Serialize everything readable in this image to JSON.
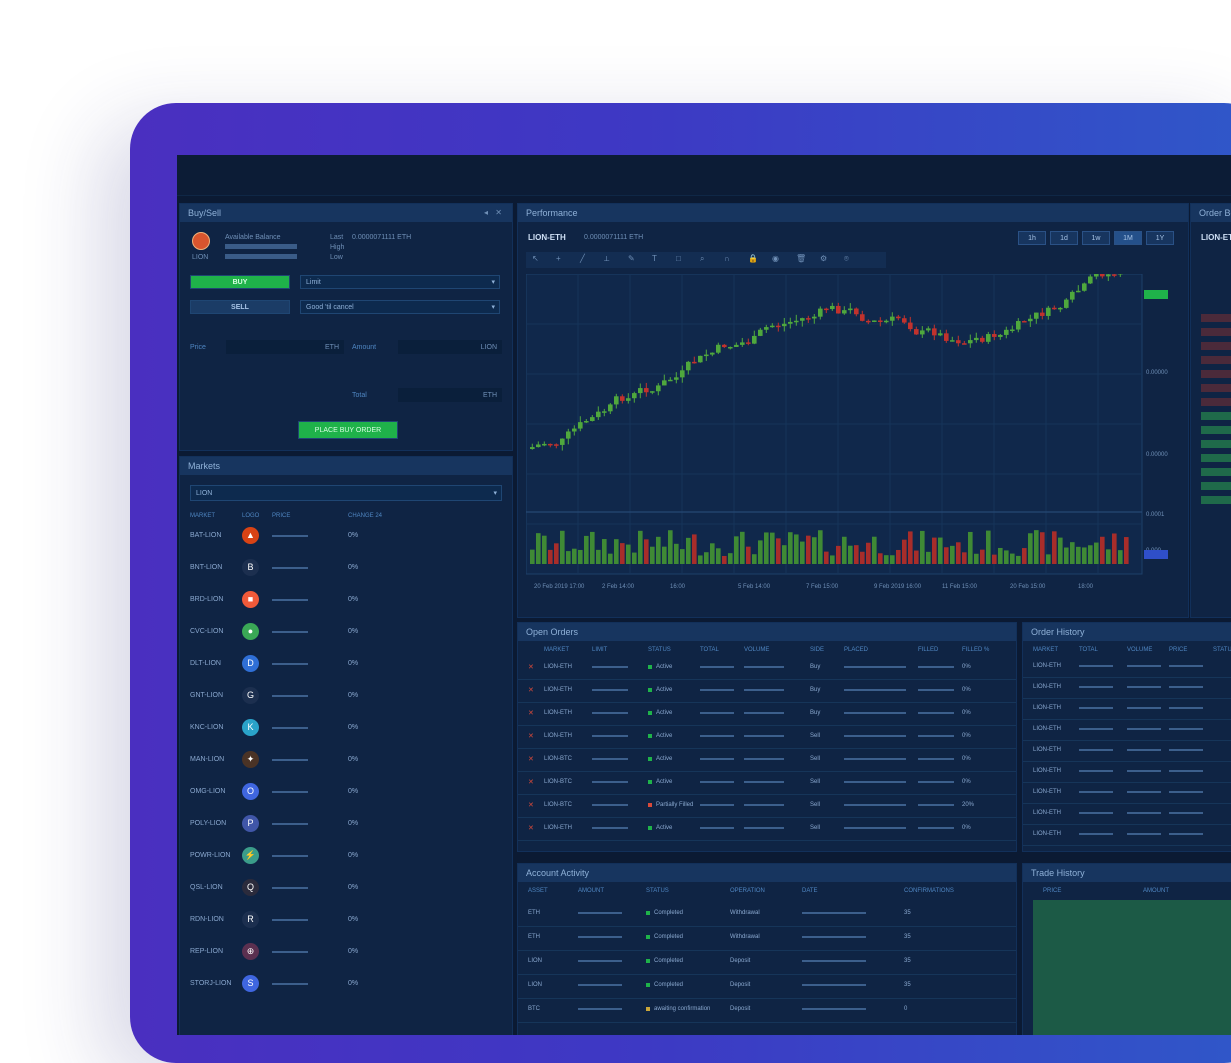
{
  "colors": {
    "accent": "#1fb24a",
    "frame": "#3d39c4",
    "panel": "#0f2444",
    "up": "#4fa83d",
    "down": "#c1322d"
  },
  "buysell": {
    "title": "Buy/Sell",
    "asset": "LION",
    "balance_label": "Available Balance",
    "last_label": "Last",
    "last_value": "0.0000071111 ETH",
    "high_label": "High",
    "low_label": "Low",
    "buy_label": "BUY",
    "sell_label": "SELL",
    "order_type": "Limit",
    "time_in_force": "Good 'til cancel",
    "price_label": "Price",
    "price_unit": "ETH",
    "amount_label": "Amount",
    "amount_unit": "LION",
    "total_label": "Total",
    "total_unit": "ETH",
    "place_label": "PLACE BUY ORDER"
  },
  "markets": {
    "title": "Markets",
    "search_value": "LION",
    "headers": [
      "MARKET",
      "LOGO",
      "PRICE",
      "CHANGE 24"
    ],
    "rows": [
      {
        "market": "BAT-LION",
        "change": "0%",
        "color": "#d84315",
        "glyph": "▲"
      },
      {
        "market": "BNT-LION",
        "change": "0%",
        "color": "#1c2f4f",
        "glyph": "B"
      },
      {
        "market": "BRD-LION",
        "change": "0%",
        "color": "#f05a3a",
        "glyph": "■"
      },
      {
        "market": "CVC-LION",
        "change": "0%",
        "color": "#3aa856",
        "glyph": "●"
      },
      {
        "market": "DLT-LION",
        "change": "0%",
        "color": "#2f6fd6",
        "glyph": "D"
      },
      {
        "market": "GNT-LION",
        "change": "0%",
        "color": "#1c2f4f",
        "glyph": "G"
      },
      {
        "market": "KNC-LION",
        "change": "0%",
        "color": "#2aa3c9",
        "glyph": "K"
      },
      {
        "market": "MAN-LION",
        "change": "0%",
        "color": "#4a3326",
        "glyph": "✦"
      },
      {
        "market": "OMG-LION",
        "change": "0%",
        "color": "#3f66e0",
        "glyph": "O"
      },
      {
        "market": "POLY-LION",
        "change": "0%",
        "color": "#4056a8",
        "glyph": "P"
      },
      {
        "market": "POWR-LION",
        "change": "0%",
        "color": "#3b9d8a",
        "glyph": "⚡"
      },
      {
        "market": "QSL-LION",
        "change": "0%",
        "color": "#2b2b3c",
        "glyph": "Q"
      },
      {
        "market": "RDN-LION",
        "change": "0%",
        "color": "#1c2f4f",
        "glyph": "R"
      },
      {
        "market": "REP-LION",
        "change": "0%",
        "color": "#5b3050",
        "glyph": "⊕"
      },
      {
        "market": "STORJ-LION",
        "change": "0%",
        "color": "#3f66e0",
        "glyph": "S"
      }
    ]
  },
  "performance": {
    "title": "Performance",
    "pair": "LION-ETH",
    "price": "0.0000071111 ETH",
    "ranges": [
      "1h",
      "1d",
      "1w",
      "1M",
      "1Y"
    ],
    "toolbar_icons": [
      "cursor-icon",
      "crosshair-icon",
      "trend-line-icon",
      "ruler-icon",
      "brush-icon",
      "text-icon",
      "shape-icon",
      "zoom-icon",
      "magnet-icon",
      "lock-icon",
      "eye-icon",
      "trash-icon",
      "settings-icon",
      "camera-icon"
    ],
    "x_labels": [
      "20 Feb 2019 17:00",
      "2 Feb 14:00",
      "16:00",
      "5 Feb 14:00",
      "7 Feb 15:00",
      "9 Feb 2019 16:00",
      "11 Feb 15:00",
      "20 Feb 15:00",
      "18:00"
    ],
    "y_labels": [
      "0.00000",
      "0.00000",
      "0.00000",
      "0.0001",
      "0.000"
    ]
  },
  "order_book": {
    "title": "Order Book",
    "pair": "LION-ETH"
  },
  "open_orders": {
    "title": "Open Orders",
    "headers": [
      "MARKET",
      "LIMIT",
      "STATUS",
      "TOTAL",
      "VOLUME",
      "SIDE",
      "PLACED",
      "FILLED",
      "FILLED %"
    ],
    "rows": [
      {
        "market": "LION-ETH",
        "status": "Active",
        "side": "Buy",
        "filled": "0%"
      },
      {
        "market": "LION-ETH",
        "status": "Active",
        "side": "Buy",
        "filled": "0%"
      },
      {
        "market": "LION-ETH",
        "status": "Active",
        "side": "Buy",
        "filled": "0%"
      },
      {
        "market": "LION-ETH",
        "status": "Active",
        "side": "Sell",
        "filled": "0%"
      },
      {
        "market": "LION-BTC",
        "status": "Active",
        "side": "Sell",
        "filled": "0%"
      },
      {
        "market": "LION-BTC",
        "status": "Active",
        "side": "Sell",
        "filled": "0%"
      },
      {
        "market": "LION-BTC",
        "status": "Partially Filled",
        "side": "Sell",
        "filled": "20%"
      },
      {
        "market": "LION-ETH",
        "status": "Active",
        "side": "Sell",
        "filled": "0%"
      }
    ]
  },
  "order_history": {
    "title": "Order History",
    "headers": [
      "MARKET",
      "TOTAL",
      "VOLUME",
      "PRICE",
      "STATUS"
    ],
    "rows": [
      "LION-ETH",
      "LION-ETH",
      "LION-ETH",
      "LION-ETH",
      "LION-ETH",
      "LION-ETH",
      "LION-ETH",
      "LION-ETH",
      "LION-ETH"
    ]
  },
  "account_activity": {
    "title": "Account Activity",
    "headers": [
      "ASSET",
      "AMOUNT",
      "STATUS",
      "OPERATION",
      "DATE",
      "CONFIRMATIONS"
    ],
    "rows": [
      {
        "asset": "ETH",
        "status": "Completed",
        "operation": "Withdrawal",
        "conf": "35"
      },
      {
        "asset": "ETH",
        "status": "Completed",
        "operation": "Withdrawal",
        "conf": "35"
      },
      {
        "asset": "LION",
        "status": "Completed",
        "operation": "Deposit",
        "conf": "35"
      },
      {
        "asset": "LION",
        "status": "Completed",
        "operation": "Deposit",
        "conf": "35"
      },
      {
        "asset": "BTC",
        "status": "awaiting confirmation",
        "operation": "Deposit",
        "conf": "0"
      }
    ]
  },
  "trade_history": {
    "title": "Trade History",
    "headers": [
      "PRICE",
      "AMOUNT"
    ]
  }
}
